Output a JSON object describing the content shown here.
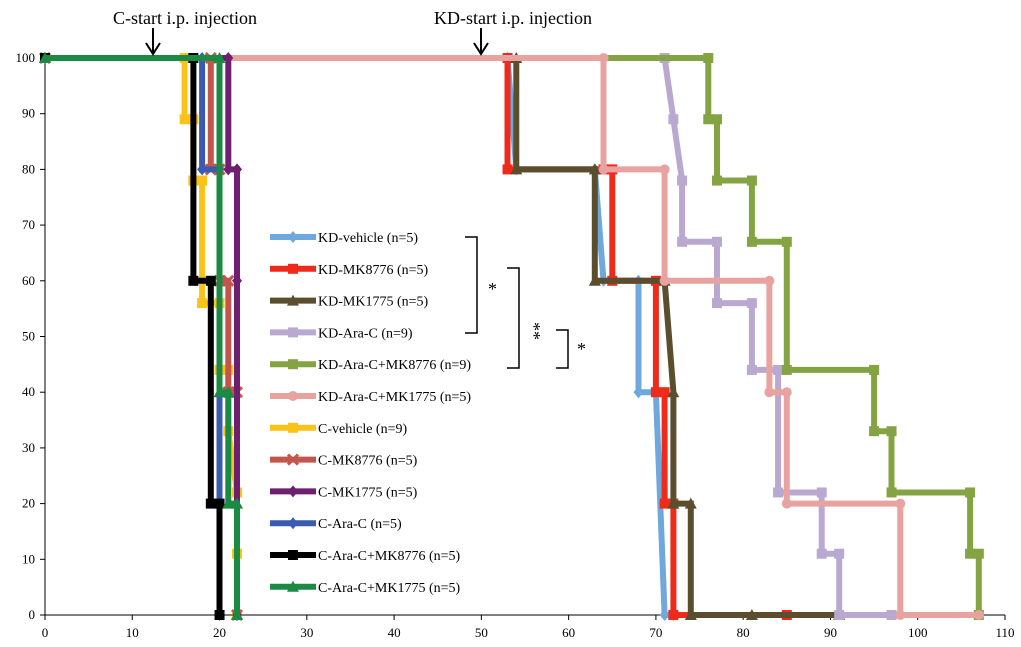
{
  "chart_data": {
    "type": "line",
    "step": true,
    "xlim": [
      0,
      110
    ],
    "ylim": [
      0,
      100
    ],
    "xticks": [
      0,
      10,
      20,
      30,
      40,
      50,
      60,
      70,
      80,
      90,
      100,
      110
    ],
    "yticks": [
      0,
      10,
      20,
      30,
      40,
      50,
      60,
      70,
      80,
      90,
      100
    ],
    "grid": false,
    "legend_position": "center-left",
    "annotations": [
      {
        "text": "C-start i.p. injection",
        "x": 12
      },
      {
        "text": "KD-start i.p. injection",
        "x": 50
      }
    ],
    "significance": [
      {
        "label": "*",
        "from": "KD-vehicle (n=5)",
        "to": "KD-Ara-C (n=9)"
      },
      {
        "label": "**",
        "from": "KD-MK8776 (n=5)",
        "to": "KD-Ara-C+MK8776 (n=9)"
      },
      {
        "label": "*",
        "from": "KD-Ara-C (n=9)",
        "to": "KD-Ara-C+MK8776 (n=9)"
      }
    ],
    "series": [
      {
        "name": "KD-vehicle (n=5)",
        "color": "#6fa8dc",
        "marker": "diamond",
        "points": [
          [
            0,
            100
          ],
          [
            53,
            100
          ],
          [
            54,
            80
          ],
          [
            63,
            80
          ],
          [
            64,
            60
          ],
          [
            68,
            60
          ],
          [
            68,
            40
          ],
          [
            70,
            40
          ],
          [
            71,
            0
          ],
          [
            72,
            0
          ]
        ]
      },
      {
        "name": "KD-MK8776 (n=5)",
        "color": "#ee2a1b",
        "marker": "square",
        "points": [
          [
            0,
            100
          ],
          [
            53,
            100
          ],
          [
            53,
            80
          ],
          [
            64,
            80
          ],
          [
            65,
            80
          ],
          [
            65,
            60
          ],
          [
            70,
            60
          ],
          [
            70,
            40
          ],
          [
            71,
            40
          ],
          [
            71,
            20
          ],
          [
            72,
            20
          ],
          [
            72,
            0
          ],
          [
            85,
            0
          ]
        ]
      },
      {
        "name": "KD-MK1775 (n=5)",
        "color": "#5a4e2e",
        "marker": "triangle",
        "points": [
          [
            0,
            100
          ],
          [
            54,
            100
          ],
          [
            54,
            80
          ],
          [
            63,
            80
          ],
          [
            63,
            60
          ],
          [
            71,
            60
          ],
          [
            72,
            40
          ],
          [
            72,
            20
          ],
          [
            74,
            20
          ],
          [
            74,
            0
          ],
          [
            81,
            0
          ],
          [
            91,
            0
          ]
        ]
      },
      {
        "name": "KD-Ara-C (n=9)",
        "color": "#b9a9d0",
        "marker": "square",
        "points": [
          [
            0,
            100
          ],
          [
            71,
            100
          ],
          [
            72,
            89
          ],
          [
            73,
            78
          ],
          [
            73,
            67
          ],
          [
            77,
            67
          ],
          [
            77,
            56
          ],
          [
            81,
            56
          ],
          [
            81,
            44
          ],
          [
            84,
            44
          ],
          [
            84,
            22
          ],
          [
            89,
            22
          ],
          [
            89,
            11
          ],
          [
            91,
            11
          ],
          [
            91,
            0
          ],
          [
            97,
            0
          ]
        ]
      },
      {
        "name": "KD-Ara-C+MK8776 (n=9)",
        "color": "#84a342",
        "marker": "square",
        "points": [
          [
            0,
            100
          ],
          [
            76,
            100
          ],
          [
            76,
            89
          ],
          [
            77,
            89
          ],
          [
            77,
            78
          ],
          [
            81,
            78
          ],
          [
            81,
            67
          ],
          [
            85,
            67
          ],
          [
            85,
            44
          ],
          [
            95,
            44
          ],
          [
            95,
            33
          ],
          [
            97,
            33
          ],
          [
            97,
            22
          ],
          [
            106,
            22
          ],
          [
            106,
            11
          ],
          [
            107,
            11
          ],
          [
            107,
            0
          ]
        ]
      },
      {
        "name": "KD-Ara-C+MK1775 (n=5)",
        "color": "#e8a3a0",
        "marker": "circle",
        "points": [
          [
            0,
            100
          ],
          [
            64,
            100
          ],
          [
            64,
            80
          ],
          [
            71,
            80
          ],
          [
            71,
            60
          ],
          [
            83,
            60
          ],
          [
            83,
            40
          ],
          [
            85,
            40
          ],
          [
            85,
            20
          ],
          [
            98,
            20
          ],
          [
            98,
            0
          ],
          [
            107,
            0
          ]
        ]
      },
      {
        "name": "C-vehicle (n=9)",
        "color": "#f9c31a",
        "marker": "square",
        "points": [
          [
            0,
            100
          ],
          [
            16,
            100
          ],
          [
            16,
            89
          ],
          [
            17,
            89
          ],
          [
            17,
            78
          ],
          [
            18,
            78
          ],
          [
            18,
            56
          ],
          [
            20,
            56
          ],
          [
            20,
            44
          ],
          [
            21,
            44
          ],
          [
            21,
            33
          ],
          [
            22,
            22
          ],
          [
            22,
            11
          ],
          [
            22,
            0
          ]
        ]
      },
      {
        "name": "C-MK8776 (n=5)",
        "color": "#c2564c",
        "marker": "x",
        "points": [
          [
            0,
            100
          ],
          [
            19,
            100
          ],
          [
            19,
            80
          ],
          [
            20,
            80
          ],
          [
            20,
            60
          ],
          [
            21,
            60
          ],
          [
            21,
            40
          ],
          [
            22,
            40
          ],
          [
            22,
            0
          ]
        ]
      },
      {
        "name": "C-MK1775 (n=5)",
        "color": "#6e1f6f",
        "marker": "diamond",
        "points": [
          [
            0,
            100
          ],
          [
            21,
            100
          ],
          [
            21,
            80
          ],
          [
            22,
            80
          ],
          [
            22,
            60
          ],
          [
            22,
            0
          ]
        ]
      },
      {
        "name": "C-Ara-C (n=5)",
        "color": "#3b5bb0",
        "marker": "diamond",
        "points": [
          [
            0,
            100
          ],
          [
            18,
            100
          ],
          [
            18,
            80
          ],
          [
            20,
            80
          ],
          [
            20,
            0
          ]
        ]
      },
      {
        "name": "C-Ara-C+MK8776 (n=5)",
        "color": "#000000",
        "marker": "square",
        "points": [
          [
            0,
            100
          ],
          [
            17,
            100
          ],
          [
            17,
            60
          ],
          [
            19,
            60
          ],
          [
            19,
            20
          ],
          [
            20,
            20
          ],
          [
            20,
            0
          ]
        ]
      },
      {
        "name": "C-Ara-C+MK1775 (n=5)",
        "color": "#1b8a42",
        "marker": "triangle",
        "points": [
          [
            0,
            100
          ],
          [
            20,
            100
          ],
          [
            20,
            40
          ],
          [
            21,
            40
          ],
          [
            21,
            20
          ],
          [
            22,
            20
          ],
          [
            22,
            0
          ]
        ]
      }
    ]
  }
}
